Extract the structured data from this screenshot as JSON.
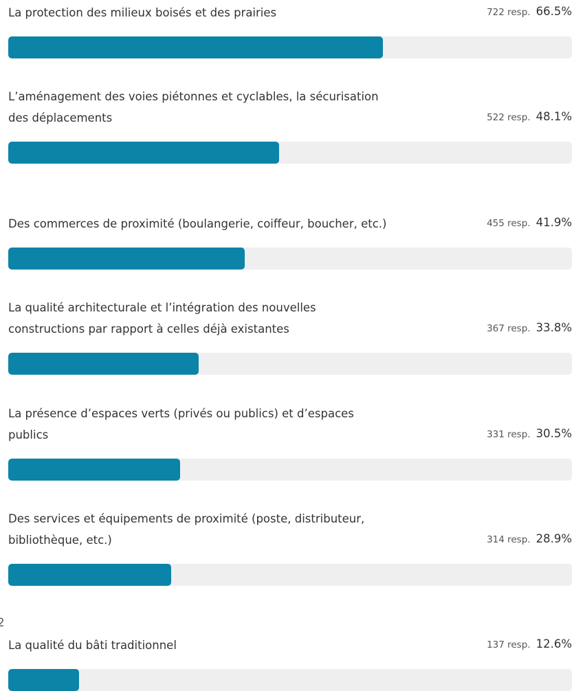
{
  "chart_data": {
    "type": "bar",
    "orientation": "horizontal",
    "categories": [
      "La protection des milieux boisés et des prairies",
      "L’aménagement des voies piétonnes et cyclables, la sécurisation des déplacements",
      "Des commerces de proximité (boulangerie, coiffeur, boucher, etc.)",
      "La qualité architecturale et l’intégration des nouvelles constructions par rapport à celles déjà existantes",
      "La présence d’espaces verts (privés ou publics) et d’espaces publics",
      "Des services et équipements de proximité (poste, distributeur, bibliothèque, etc.)",
      "La qualité du bâti traditionnel"
    ],
    "values": [
      66.5,
      48.1,
      41.9,
      33.8,
      30.5,
      28.9,
      12.6
    ],
    "value_labels": [
      "66.5%",
      "48.1%",
      "41.9%",
      "33.8%",
      "30.5%",
      "28.9%",
      "12.6%"
    ],
    "responses": [
      722,
      522,
      455,
      367,
      331,
      314,
      137
    ],
    "response_labels": [
      "722 resp.",
      "522 resp.",
      "455 resp.",
      "367 resp.",
      "331 resp.",
      "314 resp.",
      "137 resp."
    ],
    "xlim": [
      0,
      100
    ],
    "color": "#0b84a8",
    "track_color": "#efefef",
    "edge_text": "2"
  }
}
